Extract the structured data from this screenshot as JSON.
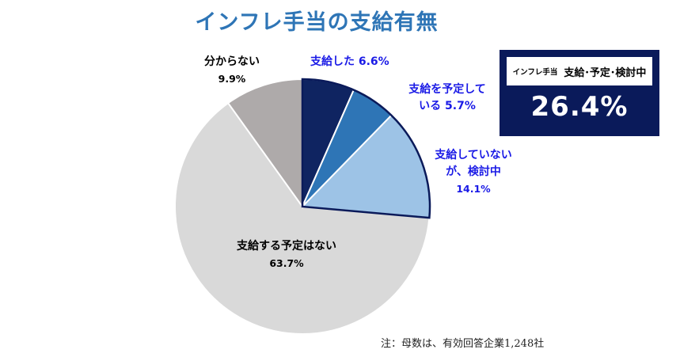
{
  "title": "インフレ手当の支給有無",
  "chart_data": {
    "type": "pie",
    "title": "インフレ手当の支給有無",
    "slices": [
      {
        "label": "支給した",
        "value": 6.6,
        "value_label": "6.6%",
        "color": "#0f2461"
      },
      {
        "label": "支給を予定している",
        "value": 5.7,
        "value_label": "5.7%",
        "color": "#2e75b6"
      },
      {
        "label": "支給していないが、検討中",
        "value": 14.1,
        "value_label": "14.1%",
        "color": "#9dc3e6"
      },
      {
        "label": "支給する予定はない",
        "value": 63.7,
        "value_label": "63.7%",
        "color": "#d9d9d9"
      },
      {
        "label": "分からない",
        "value": 9.9,
        "value_label": "9.9%",
        "color": "#aeaaaa"
      }
    ],
    "highlighted_group": [
      "支給した",
      "支給を予定している",
      "支給していないが、検討中"
    ],
    "highlight_outline_color": "#0a1a5a"
  },
  "labels": {
    "s1_line1": "支給した 6.6%",
    "s2_line1": "支給を予定して",
    "s2_line2": "いる 5.7%",
    "s3_line1": "支給していない",
    "s3_line2": "が、検討中",
    "s3_line3": "14.1%",
    "s4_line1": "支給する予定はない",
    "s4_line2": "63.7%",
    "s5_line1": "分からない",
    "s5_line2": "9.9%"
  },
  "kpi": {
    "head_small": "インフレ手当",
    "head_big": "支給･予定･検討中",
    "value": "26.4%",
    "bg_color": "#0a1a5a"
  },
  "note": "注：母数は、有効回答企業1,248社"
}
